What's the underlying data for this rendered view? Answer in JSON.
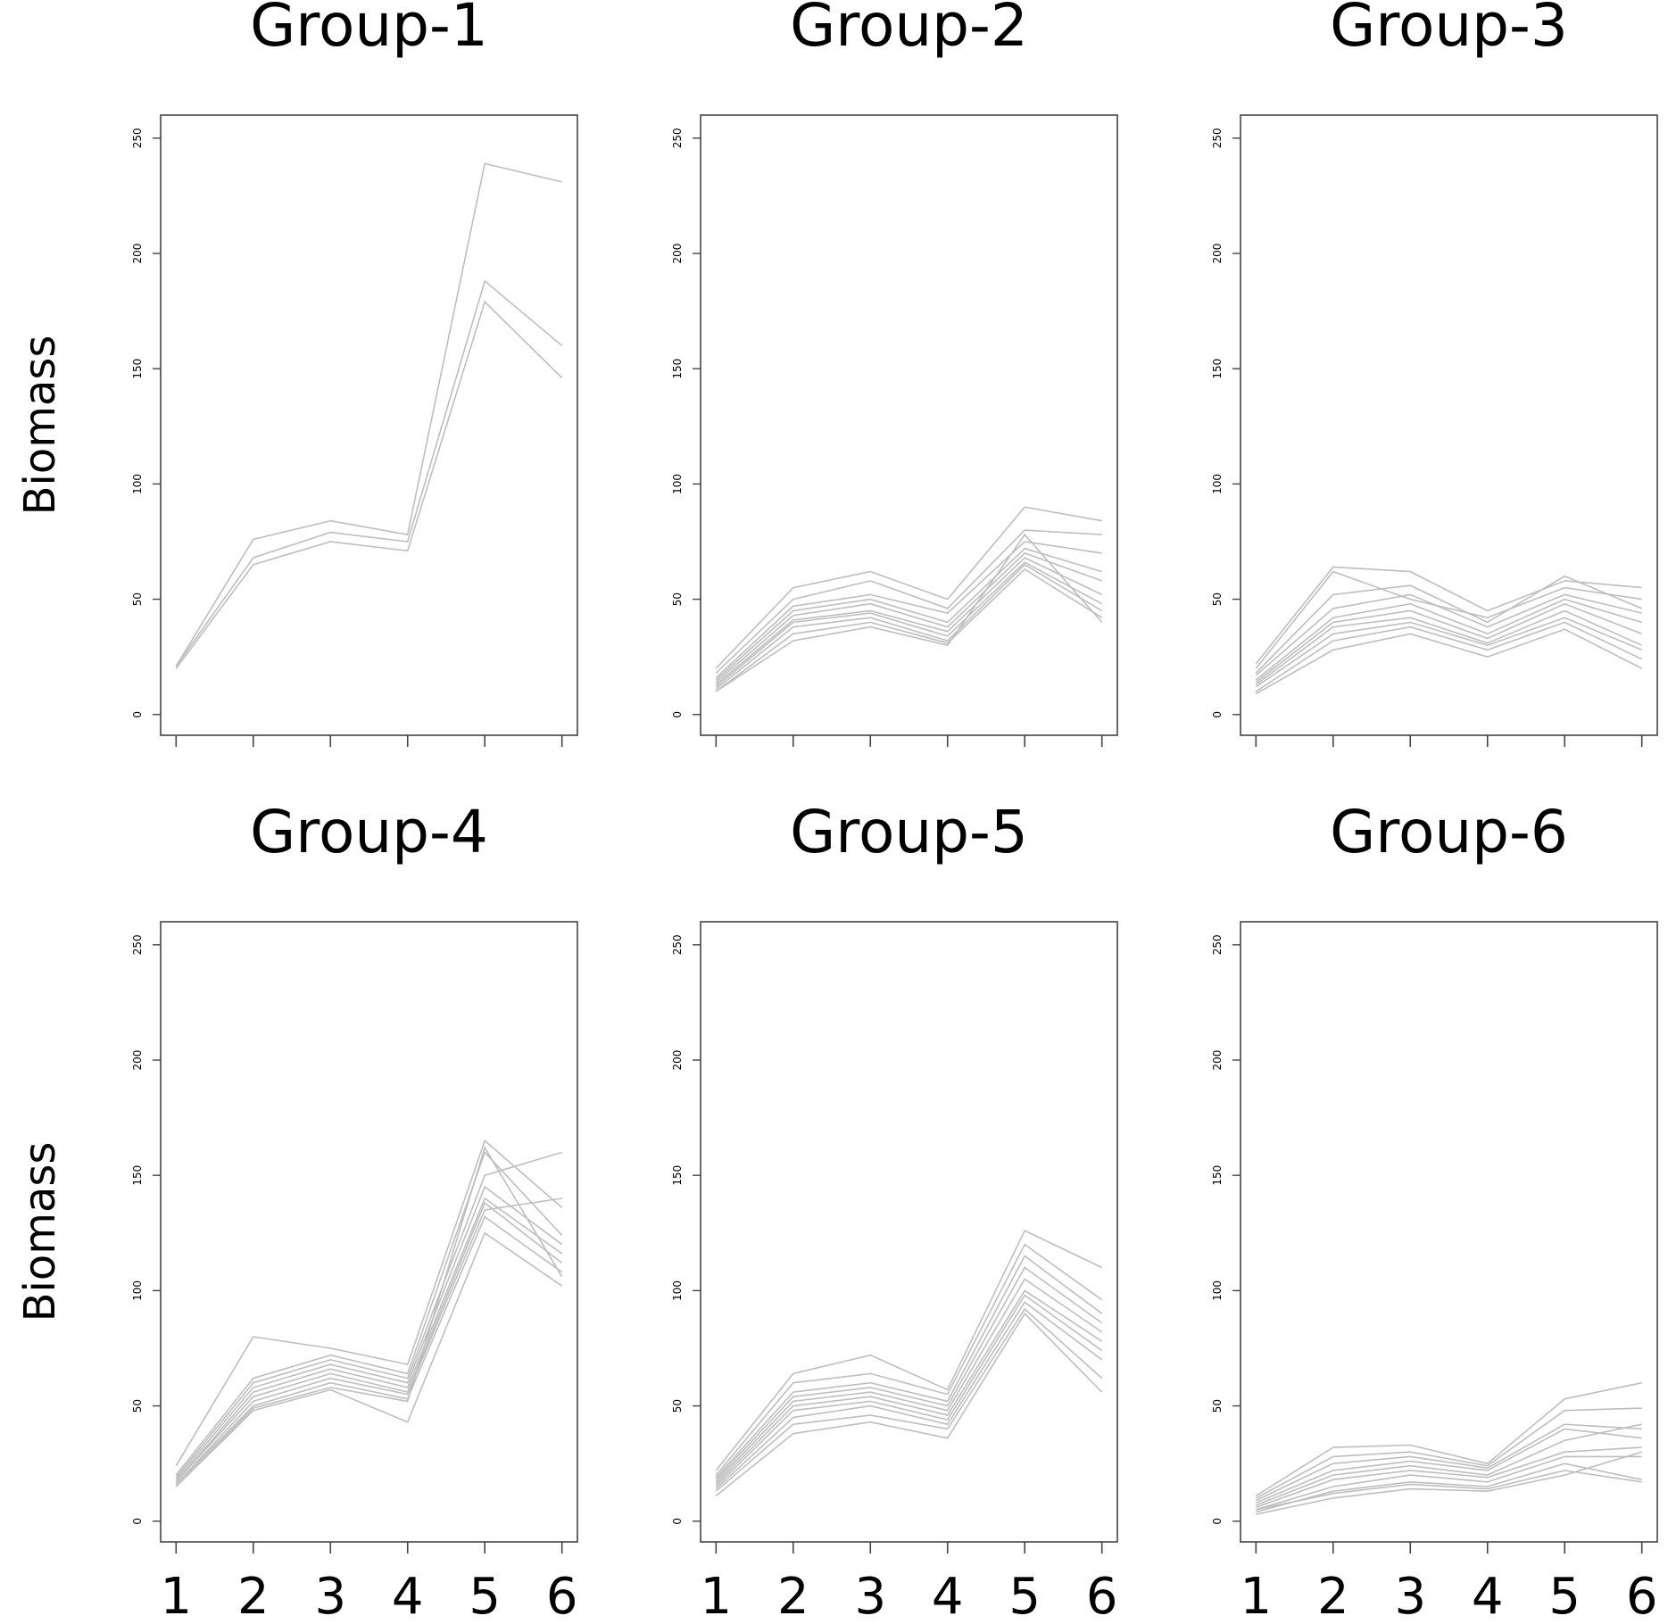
{
  "chart_data": [
    {
      "type": "line",
      "title": "Group-1",
      "y_label": "Biomass",
      "show_xtick_labels": false,
      "x": [
        1,
        2,
        3,
        4,
        5,
        6
      ],
      "xlim": [
        0.8,
        6.2
      ],
      "xticks": [
        1,
        2,
        3,
        4,
        5,
        6
      ],
      "ylim": [
        -9,
        260
      ],
      "yticks": [
        0,
        50,
        100,
        150,
        200,
        250
      ],
      "series": [
        {
          "color": "#bebebe",
          "values": [
            21,
            76,
            84,
            78,
            239,
            231
          ]
        },
        {
          "color": "#bebebe",
          "values": [
            21,
            68,
            79,
            75,
            188,
            160
          ]
        },
        {
          "color": "#bebebe",
          "values": [
            20,
            65,
            75,
            71,
            179,
            146
          ]
        }
      ]
    },
    {
      "type": "line",
      "title": "Group-2",
      "show_xtick_labels": false,
      "x": [
        1,
        2,
        3,
        4,
        5,
        6
      ],
      "xlim": [
        0.8,
        6.2
      ],
      "xticks": [
        1,
        2,
        3,
        4,
        5,
        6
      ],
      "ylim": [
        -9,
        260
      ],
      "yticks": [
        0,
        50,
        100,
        150,
        200,
        250
      ],
      "series": [
        {
          "color": "#bebebe",
          "values": [
            20,
            55,
            62,
            50,
            90,
            84
          ]
        },
        {
          "color": "#bebebe",
          "values": [
            18,
            50,
            58,
            46,
            80,
            78
          ]
        },
        {
          "color": "#bebebe",
          "values": [
            16,
            47,
            52,
            44,
            75,
            70
          ]
        },
        {
          "color": "#bebebe",
          "values": [
            15,
            45,
            50,
            40,
            72,
            62
          ]
        },
        {
          "color": "#bebebe",
          "values": [
            14,
            43,
            48,
            38,
            70,
            58
          ]
        },
        {
          "color": "#bebebe",
          "values": [
            13,
            41,
            45,
            36,
            68,
            52
          ]
        },
        {
          "color": "#bebebe",
          "values": [
            12,
            40,
            44,
            34,
            66,
            48
          ]
        },
        {
          "color": "#bebebe",
          "values": [
            11,
            38,
            42,
            32,
            65,
            45
          ]
        },
        {
          "color": "#bebebe",
          "values": [
            10,
            35,
            40,
            31,
            63,
            42
          ]
        },
        {
          "color": "#bebebe",
          "values": [
            10,
            32,
            38,
            30,
            78,
            40
          ]
        }
      ]
    },
    {
      "type": "line",
      "title": "Group-3",
      "show_xtick_labels": false,
      "x": [
        1,
        2,
        3,
        4,
        5,
        6
      ],
      "xlim": [
        0.8,
        6.2
      ],
      "xticks": [
        1,
        2,
        3,
        4,
        5,
        6
      ],
      "ylim": [
        -9,
        260
      ],
      "yticks": [
        0,
        50,
        100,
        150,
        200,
        250
      ],
      "series": [
        {
          "color": "#bebebe",
          "values": [
            22,
            64,
            62,
            45,
            58,
            55
          ]
        },
        {
          "color": "#bebebe",
          "values": [
            20,
            62,
            50,
            42,
            55,
            50
          ]
        },
        {
          "color": "#bebebe",
          "values": [
            18,
            52,
            56,
            40,
            60,
            46
          ]
        },
        {
          "color": "#bebebe",
          "values": [
            17,
            46,
            52,
            38,
            52,
            44
          ]
        },
        {
          "color": "#bebebe",
          "values": [
            15,
            42,
            48,
            35,
            50,
            40
          ]
        },
        {
          "color": "#bebebe",
          "values": [
            14,
            40,
            45,
            33,
            48,
            35
          ]
        },
        {
          "color": "#bebebe",
          "values": [
            13,
            38,
            42,
            31,
            45,
            30
          ]
        },
        {
          "color": "#bebebe",
          "values": [
            12,
            35,
            40,
            30,
            42,
            28
          ]
        },
        {
          "color": "#bebebe",
          "values": [
            10,
            32,
            38,
            28,
            40,
            24
          ]
        },
        {
          "color": "#bebebe",
          "values": [
            9,
            28,
            35,
            25,
            37,
            20
          ]
        }
      ]
    },
    {
      "type": "line",
      "title": "Group-4",
      "y_label": "Biomass",
      "show_xtick_labels": true,
      "x": [
        1,
        2,
        3,
        4,
        5,
        6
      ],
      "xlim": [
        0.8,
        6.2
      ],
      "xticks": [
        1,
        2,
        3,
        4,
        5,
        6
      ],
      "ylim": [
        -9,
        260
      ],
      "yticks": [
        0,
        50,
        100,
        150,
        200,
        250
      ],
      "series": [
        {
          "color": "#bebebe",
          "values": [
            24,
            80,
            75,
            68,
            165,
            136
          ]
        },
        {
          "color": "#bebebe",
          "values": [
            20,
            62,
            72,
            64,
            160,
            124
          ]
        },
        {
          "color": "#bebebe",
          "values": [
            19,
            60,
            70,
            62,
            150,
            160
          ]
        },
        {
          "color": "#bebebe",
          "values": [
            18,
            58,
            68,
            60,
            145,
            120
          ]
        },
        {
          "color": "#bebebe",
          "values": [
            17,
            56,
            66,
            58,
            140,
            116
          ]
        },
        {
          "color": "#bebebe",
          "values": [
            17,
            54,
            64,
            56,
            138,
            112
          ]
        },
        {
          "color": "#bebebe",
          "values": [
            16,
            52,
            62,
            55,
            135,
            140
          ]
        },
        {
          "color": "#bebebe",
          "values": [
            16,
            50,
            60,
            53,
            132,
            108
          ]
        },
        {
          "color": "#bebebe",
          "values": [
            15,
            48,
            57,
            43,
            125,
            102
          ]
        },
        {
          "color": "#bebebe",
          "values": [
            15,
            49,
            58,
            52,
            162,
            106
          ]
        }
      ]
    },
    {
      "type": "line",
      "title": "Group-5",
      "show_xtick_labels": true,
      "x": [
        1,
        2,
        3,
        4,
        5,
        6
      ],
      "xlim": [
        0.8,
        6.2
      ],
      "xticks": [
        1,
        2,
        3,
        4,
        5,
        6
      ],
      "ylim": [
        -9,
        260
      ],
      "yticks": [
        0,
        50,
        100,
        150,
        200,
        250
      ],
      "series": [
        {
          "color": "#bebebe",
          "values": [
            22,
            64,
            72,
            57,
            126,
            110
          ]
        },
        {
          "color": "#bebebe",
          "values": [
            20,
            60,
            64,
            55,
            120,
            96
          ]
        },
        {
          "color": "#bebebe",
          "values": [
            19,
            56,
            60,
            52,
            115,
            90
          ]
        },
        {
          "color": "#bebebe",
          "values": [
            18,
            54,
            58,
            50,
            110,
            86
          ]
        },
        {
          "color": "#bebebe",
          "values": [
            17,
            52,
            56,
            48,
            105,
            82
          ]
        },
        {
          "color": "#bebebe",
          "values": [
            16,
            50,
            54,
            46,
            100,
            78
          ]
        },
        {
          "color": "#bebebe",
          "values": [
            15,
            48,
            52,
            44,
            98,
            74
          ]
        },
        {
          "color": "#bebebe",
          "values": [
            14,
            45,
            50,
            42,
            95,
            70
          ]
        },
        {
          "color": "#bebebe",
          "values": [
            13,
            42,
            46,
            40,
            92,
            62
          ]
        },
        {
          "color": "#bebebe",
          "values": [
            11,
            38,
            43,
            36,
            90,
            56
          ]
        }
      ]
    },
    {
      "type": "line",
      "title": "Group-6",
      "show_xtick_labels": true,
      "x": [
        1,
        2,
        3,
        4,
        5,
        6
      ],
      "xlim": [
        0.8,
        6.2
      ],
      "xticks": [
        1,
        2,
        3,
        4,
        5,
        6
      ],
      "ylim": [
        -9,
        260
      ],
      "yticks": [
        0,
        50,
        100,
        150,
        200,
        250
      ],
      "series": [
        {
          "color": "#bebebe",
          "values": [
            11,
            32,
            33,
            25,
            53,
            60
          ]
        },
        {
          "color": "#bebebe",
          "values": [
            10,
            28,
            30,
            24,
            48,
            49
          ]
        },
        {
          "color": "#bebebe",
          "values": [
            9,
            25,
            28,
            23,
            42,
            40
          ]
        },
        {
          "color": "#bebebe",
          "values": [
            8,
            22,
            26,
            22,
            40,
            36
          ]
        },
        {
          "color": "#bebebe",
          "values": [
            7,
            20,
            24,
            20,
            35,
            42
          ]
        },
        {
          "color": "#bebebe",
          "values": [
            6,
            18,
            22,
            19,
            30,
            32
          ]
        },
        {
          "color": "#bebebe",
          "values": [
            5,
            15,
            20,
            17,
            28,
            28
          ]
        },
        {
          "color": "#bebebe",
          "values": [
            4,
            13,
            17,
            15,
            25,
            18
          ]
        },
        {
          "color": "#bebebe",
          "values": [
            3,
            10,
            14,
            13,
            20,
            30
          ]
        },
        {
          "color": "#bebebe",
          "values": [
            5,
            12,
            16,
            14,
            22,
            17
          ]
        }
      ]
    }
  ]
}
